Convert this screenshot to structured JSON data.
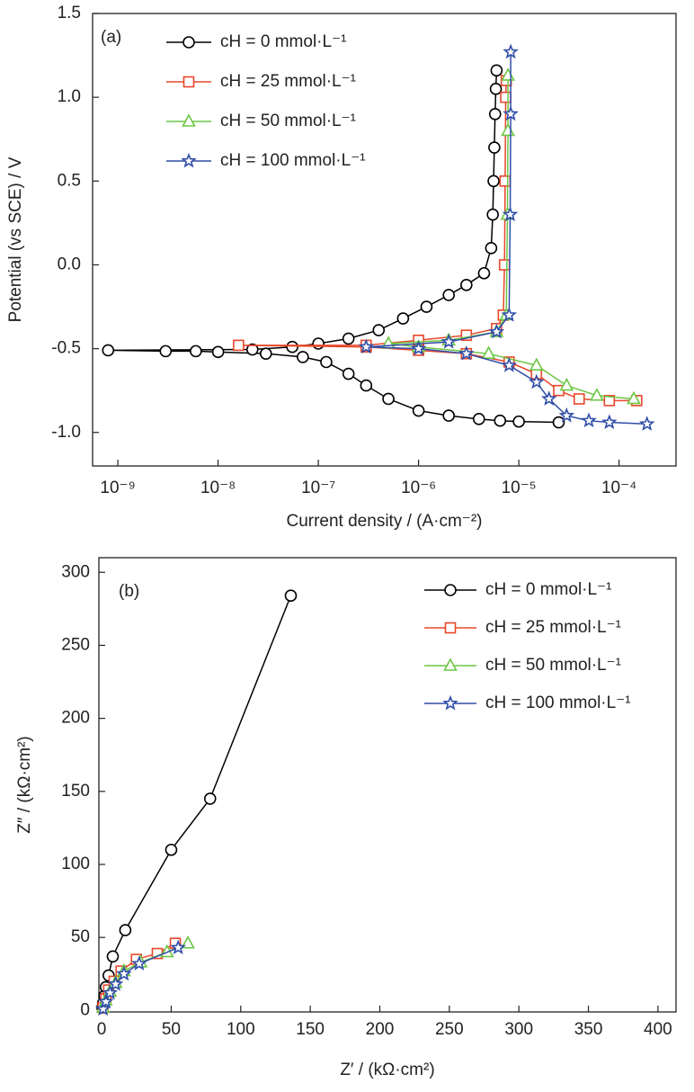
{
  "chart_data": [
    {
      "type": "line",
      "xscale": "log",
      "annotation": "(a)",
      "x_label": "Current density / (A·cm⁻²)",
      "y_label": "Potential (vs SCE) / V",
      "xlim": [
        5.6e-10,
        0.00037
      ],
      "ylim": [
        -1.2,
        1.5
      ],
      "xticks": [
        {
          "value": 1e-09,
          "label": "10⁻⁹"
        },
        {
          "value": 1e-08,
          "label": "10⁻⁸"
        },
        {
          "value": 1e-07,
          "label": "10⁻⁷"
        },
        {
          "value": 1e-06,
          "label": "10⁻⁶"
        },
        {
          "value": 1e-05,
          "label": "10⁻⁵"
        },
        {
          "value": 0.0001,
          "label": "10⁻⁴"
        }
      ],
      "yticks": [
        {
          "value": -1,
          "label": "-1.0"
        },
        -0.5,
        {
          "value": 0,
          "label": "0.0"
        },
        0.5,
        {
          "value": 1,
          "label": "1.0"
        },
        1.5
      ],
      "legend": "upper left",
      "series": [
        {
          "name": "cH = 0 mmol·L⁻¹",
          "color": "#000000",
          "marker": "circle",
          "x": [
            2.5e-05,
            1e-05,
            6.5e-06,
            4e-06,
            2e-06,
            1e-06,
            5e-07,
            3e-07,
            2e-07,
            1.2e-07,
            7e-08,
            3e-08,
            1e-08,
            6e-09,
            3e-09,
            8e-10,
            2.2e-08,
            5.5e-08,
            1e-07,
            2e-07,
            4e-07,
            7e-07,
            1.2e-06,
            2e-06,
            3e-06,
            4.5e-06,
            5.3e-06,
            5.5e-06,
            5.6e-06,
            5.7e-06,
            5.8e-06,
            5.9e-06,
            6e-06
          ],
          "values": [
            -0.94,
            -0.935,
            -0.93,
            -0.92,
            -0.9,
            -0.87,
            -0.8,
            -0.72,
            -0.65,
            -0.58,
            -0.55,
            -0.53,
            -0.52,
            -0.515,
            -0.515,
            -0.51,
            -0.505,
            -0.49,
            -0.47,
            -0.44,
            -0.39,
            -0.32,
            -0.25,
            -0.18,
            -0.12,
            -0.05,
            0.1,
            0.3,
            0.5,
            0.7,
            0.9,
            1.05,
            1.16
          ]
        },
        {
          "name": "cH = 25 mmol·L⁻¹",
          "color": "#e8472a",
          "marker": "square",
          "x": [
            0.00015,
            8e-05,
            4e-05,
            2.5e-05,
            1.5e-05,
            8e-06,
            3e-06,
            1e-06,
            3e-07,
            1.6e-08,
            3e-07,
            1e-06,
            3e-06,
            6e-06,
            7e-06,
            7.2e-06,
            7.3e-06,
            7.4e-06,
            7.5e-06
          ],
          "values": [
            -0.81,
            -0.81,
            -0.8,
            -0.75,
            -0.65,
            -0.58,
            -0.53,
            -0.51,
            -0.49,
            -0.48,
            -0.48,
            -0.45,
            -0.42,
            -0.38,
            -0.3,
            0,
            0.5,
            1.0,
            1.1
          ]
        },
        {
          "name": "cH = 50 mmol·L⁻¹",
          "color": "#6cc644",
          "marker": "triangle",
          "x": [
            0.00014,
            6e-05,
            3e-05,
            1.5e-05,
            5e-06,
            1e-06,
            5e-07,
            2e-06,
            6e-06,
            7.5e-06,
            7.7e-06,
            7.8e-06,
            7.8e-06
          ],
          "values": [
            -0.8,
            -0.78,
            -0.72,
            -0.6,
            -0.53,
            -0.49,
            -0.47,
            -0.45,
            -0.4,
            -0.3,
            0.3,
            0.8,
            1.13
          ]
        },
        {
          "name": "cH = 100 mmol·L⁻¹",
          "color": "#2f4da8",
          "marker": "star",
          "x": [
            0.00019,
            8e-05,
            5e-05,
            3e-05,
            2e-05,
            1.5e-05,
            8e-06,
            3e-06,
            1e-06,
            3e-07,
            2e-06,
            6e-06,
            8e-06,
            8.2e-06,
            8.3e-06,
            8.3e-06
          ],
          "values": [
            -0.95,
            -0.94,
            -0.93,
            -0.9,
            -0.8,
            -0.7,
            -0.6,
            -0.53,
            -0.5,
            -0.49,
            -0.46,
            -0.4,
            -0.3,
            0.3,
            0.9,
            1.27
          ]
        }
      ]
    },
    {
      "type": "line",
      "annotation": "(b)",
      "x_label": "Z′ / (kΩ·cm²)",
      "y_label": "Z″ / (kΩ·cm²)",
      "xlim": [
        -2,
        413
      ],
      "ylim": [
        -1,
        310
      ],
      "xticks": [
        0,
        50,
        100,
        150,
        200,
        250,
        300,
        350,
        400
      ],
      "yticks": [
        0,
        50,
        100,
        150,
        200,
        250,
        300
      ],
      "legend": "upper right",
      "series": [
        {
          "name": "cH = 0 mmol·L⁻¹",
          "color": "#000000",
          "marker": "circle",
          "x": [
            0.5,
            1,
            2,
            3,
            5,
            8,
            17,
            50,
            78,
            136
          ],
          "values": [
            2,
            5,
            10,
            16,
            24,
            37,
            55,
            110,
            145,
            284
          ]
        },
        {
          "name": "cH = 25 mmol·L⁻¹",
          "color": "#e8472a",
          "marker": "square",
          "x": [
            1,
            3,
            5,
            9,
            14,
            25,
            40,
            53
          ],
          "values": [
            2,
            8,
            14,
            20,
            27,
            35,
            39,
            46
          ]
        },
        {
          "name": "cH = 50 mmol·L⁻¹",
          "color": "#6cc644",
          "marker": "triangle",
          "x": [
            1,
            3,
            6,
            10,
            16,
            28,
            47,
            62
          ],
          "values": [
            2,
            7,
            13,
            19,
            27,
            33,
            40,
            46
          ]
        },
        {
          "name": "cH = 100 mmol·L⁻¹",
          "color": "#2f4da8",
          "marker": "star",
          "x": [
            1,
            3,
            6,
            10,
            16,
            27,
            55
          ],
          "values": [
            1,
            6,
            12,
            18,
            25,
            32,
            43
          ]
        }
      ]
    }
  ]
}
